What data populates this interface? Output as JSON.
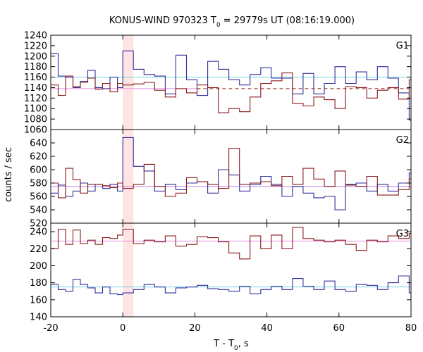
{
  "title": {
    "prefix": "KONUS-WIND 970323 T",
    "sub": "0",
    "suffix": " = 29779s UT (08:16:19.000)"
  },
  "chart_data": {
    "type": "line",
    "xlabel": {
      "prefix": "T - T",
      "sub": "0",
      "suffix": ", s"
    },
    "ylabel": "counts / sec",
    "xlim": [
      -20,
      80
    ],
    "x_ticks": [
      -20,
      0,
      20,
      40,
      60,
      80
    ],
    "highlight_band": {
      "x0": 0,
      "x1": 2.944,
      "color": "#ffe4e4"
    },
    "colors": {
      "red_series": "#8b1a1a",
      "blue_series": "#2f2f9e",
      "cyan_level": "#74d2e8",
      "pink_level": "#e48ee0"
    },
    "panels": [
      {
        "label": "G1",
        "ylim": [
          1060,
          1240
        ],
        "y_ticks": [
          1060,
          1080,
          1100,
          1120,
          1140,
          1160,
          1180,
          1200,
          1220,
          1240
        ],
        "bin_edges": [
          -20,
          -17.944,
          -15.888,
          -13.832,
          -11.776,
          -9.72,
          -7.664,
          -5.608,
          -3.552,
          -1.496,
          0,
          2.944,
          5.888,
          8.832,
          11.776,
          14.72,
          17.664,
          20.608,
          23.552,
          26.496,
          29.44,
          32.384,
          35.328,
          38.272,
          41.216,
          44.16,
          47.104,
          50.048,
          52.992,
          55.936,
          58.88,
          61.824,
          64.768,
          67.712,
          70.656,
          73.6,
          76.544,
          79.488,
          80
        ],
        "red_values": [
          1145,
          1125,
          1162,
          1142,
          1150,
          1158,
          1137,
          1148,
          1132,
          1148,
          1145,
          1147,
          1150,
          1135,
          1122,
          1138,
          1130,
          1145,
          1140,
          1092,
          1100,
          1094,
          1122,
          1148,
          1153,
          1168,
          1110,
          1105,
          1122,
          1117,
          1100,
          1142,
          1140,
          1120,
          1135,
          1140,
          1118,
          1155,
          1135
        ],
        "blue_values": [
          1205,
          1162,
          1160,
          1140,
          1152,
          1173,
          1140,
          1138,
          1160,
          1140,
          1210,
          1175,
          1165,
          1162,
          1128,
          1202,
          1155,
          1125,
          1190,
          1175,
          1155,
          1145,
          1165,
          1178,
          1158,
          1158,
          1128,
          1167,
          1128,
          1148,
          1180,
          1148,
          1170,
          1155,
          1180,
          1158,
          1130,
          1078,
          1160
        ],
        "levels": [
          {
            "name": "cyan",
            "value": 1160,
            "x0": -20,
            "x1": 80,
            "dashed": false
          },
          {
            "name": "pink",
            "value": 1138,
            "x0": -20,
            "x1": 20.6,
            "dashed": false
          },
          {
            "name": "pink_dashed",
            "value": 1138,
            "x0": 20.6,
            "x1": 80,
            "dashed": true
          }
        ]
      },
      {
        "label": "G2",
        "ylim": [
          520,
          660
        ],
        "y_ticks": [
          520,
          540,
          560,
          580,
          600,
          620,
          640
        ],
        "bin_edges": [
          -20,
          -17.944,
          -15.888,
          -13.832,
          -11.776,
          -9.72,
          -7.664,
          -5.608,
          -3.552,
          -1.496,
          0,
          2.944,
          5.888,
          8.832,
          11.776,
          14.72,
          17.664,
          20.608,
          23.552,
          26.496,
          29.44,
          32.384,
          35.328,
          38.272,
          41.216,
          44.16,
          47.104,
          50.048,
          52.992,
          55.936,
          58.88,
          61.824,
          64.768,
          67.712,
          70.656,
          73.6,
          76.544,
          79.488,
          80
        ],
        "red_values": [
          580,
          558,
          602,
          585,
          565,
          578,
          578,
          576,
          573,
          580,
          572,
          578,
          608,
          575,
          560,
          565,
          588,
          582,
          578,
          572,
          632,
          578,
          580,
          582,
          576,
          590,
          578,
          602,
          586,
          575,
          598,
          577,
          575,
          590,
          562,
          562,
          570,
          586,
          586
        ],
        "blue_values": [
          565,
          577,
          560,
          568,
          580,
          568,
          578,
          572,
          578,
          568,
          648,
          605,
          598,
          568,
          578,
          570,
          580,
          582,
          565,
          600,
          592,
          568,
          578,
          590,
          578,
          560,
          575,
          565,
          558,
          560,
          540,
          578,
          580,
          568,
          578,
          568,
          580,
          595,
          578
        ],
        "levels": [
          {
            "name": "cyan",
            "value": 575,
            "x0": -20,
            "x1": 80,
            "dashed": false
          },
          {
            "name": "pink",
            "value": 575,
            "x0": -20,
            "x1": 80,
            "dashed": false
          }
        ]
      },
      {
        "label": "G3",
        "ylim": [
          140,
          250
        ],
        "y_ticks": [
          140,
          160,
          180,
          200,
          220,
          240
        ],
        "bin_edges": [
          -20,
          -17.944,
          -15.888,
          -13.832,
          -11.776,
          -9.72,
          -7.664,
          -5.608,
          -3.552,
          -1.496,
          0,
          2.944,
          5.888,
          8.832,
          11.776,
          14.72,
          17.664,
          20.608,
          23.552,
          26.496,
          29.44,
          32.384,
          35.328,
          38.272,
          41.216,
          44.16,
          47.104,
          50.048,
          52.992,
          55.936,
          58.88,
          61.824,
          64.768,
          67.712,
          70.656,
          73.6,
          76.544,
          79.488,
          80
        ],
        "red_values": [
          220,
          243,
          225,
          242,
          226,
          230,
          225,
          233,
          232,
          236,
          243,
          226,
          230,
          228,
          235,
          223,
          225,
          234,
          233,
          228,
          215,
          208,
          235,
          220,
          236,
          220,
          245,
          232,
          230,
          228,
          230,
          225,
          218,
          230,
          228,
          235,
          232,
          238,
          233
        ],
        "blue_values": [
          178,
          172,
          170,
          184,
          178,
          174,
          168,
          175,
          167,
          166,
          168,
          172,
          178,
          175,
          168,
          174,
          175,
          177,
          173,
          172,
          170,
          176,
          167,
          172,
          176,
          172,
          185,
          176,
          172,
          182,
          172,
          170,
          178,
          177,
          172,
          180,
          188,
          168,
          172
        ],
        "levels": [
          {
            "name": "cyan",
            "value": 175,
            "x0": -20,
            "x1": 80,
            "dashed": false
          },
          {
            "name": "pink",
            "value": 229,
            "x0": -20,
            "x1": 80,
            "dashed": false
          }
        ]
      }
    ]
  }
}
